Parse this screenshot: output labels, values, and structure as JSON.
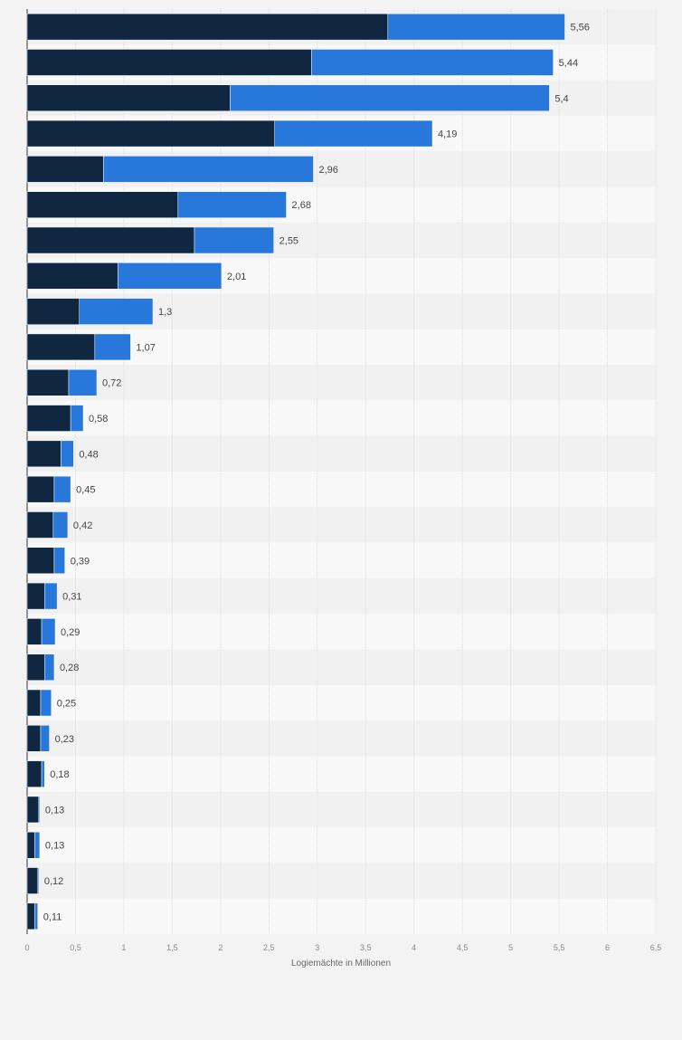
{
  "chart_data": {
    "type": "bar",
    "orientation": "horizontal",
    "stacked": true,
    "title": "",
    "xlabel": "Logiemächte in Millionen",
    "ylabel": "",
    "xlim": [
      0,
      6.5
    ],
    "xticks": [
      "0",
      "0,5",
      "1",
      "1,5",
      "2",
      "2,5",
      "3",
      "3,5",
      "4",
      "4,5",
      "5",
      "5,5",
      "6",
      "6,5"
    ],
    "grid": true,
    "legend": "none",
    "colors": [
      "#0f2740",
      "#2878dc"
    ],
    "series": [
      {
        "values": [
          3.73,
          2.94,
          2.1,
          2.56,
          0.79,
          1.56,
          1.73,
          0.94,
          0.54,
          0.7,
          0.43,
          0.45,
          0.35,
          0.28,
          0.27,
          0.28,
          0.18,
          0.15,
          0.18,
          0.14,
          0.14,
          0.15,
          0.12,
          0.08,
          0.11,
          0.08
        ]
      },
      {
        "values": [
          1.83,
          2.5,
          3.3,
          1.63,
          2.17,
          1.12,
          0.82,
          1.07,
          0.76,
          0.37,
          0.29,
          0.13,
          0.13,
          0.17,
          0.15,
          0.11,
          0.13,
          0.14,
          0.1,
          0.11,
          0.09,
          0.03,
          0.01,
          0.05,
          0.01,
          0.03
        ]
      }
    ],
    "totals": [
      5.56,
      5.44,
      5.4,
      4.19,
      2.96,
      2.68,
      2.55,
      2.01,
      1.3,
      1.07,
      0.72,
      0.58,
      0.48,
      0.45,
      0.42,
      0.39,
      0.31,
      0.29,
      0.28,
      0.25,
      0.23,
      0.18,
      0.13,
      0.13,
      0.12,
      0.11
    ],
    "total_labels": [
      "5,56",
      "5,44",
      "5,4",
      "4,19",
      "2,96",
      "2,68",
      "2,55",
      "2,01",
      "1,3",
      "1,07",
      "0,72",
      "0,58",
      "0,48",
      "0,45",
      "0,42",
      "0,39",
      "0,31",
      "0,29",
      "0,28",
      "0,25",
      "0,23",
      "0,18",
      "0,13",
      "0,13",
      "0,12",
      "0,11"
    ]
  }
}
